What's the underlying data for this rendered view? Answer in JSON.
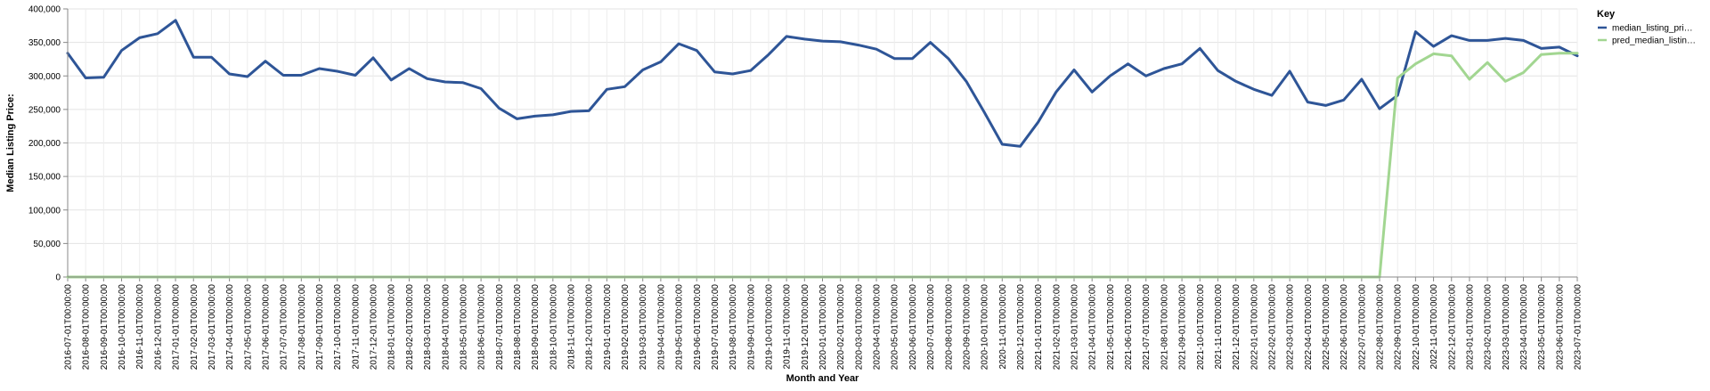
{
  "chart_data": {
    "type": "line",
    "xlabel": "Month and Year",
    "ylabel": "Median Listing Price:",
    "ylim": [
      0,
      400000
    ],
    "yticks": [
      "0",
      "50,000",
      "100,000",
      "150,000",
      "200,000",
      "250,000",
      "300,000",
      "350,000",
      "400,000"
    ],
    "ytick_values": [
      0,
      50000,
      100000,
      150000,
      200000,
      250000,
      300000,
      350000,
      400000
    ],
    "grid": true,
    "legend": {
      "title": "Key",
      "placement": "top-right",
      "entries": [
        "median_listing_pri…",
        "pred_median_listin…"
      ]
    },
    "x": [
      "2016-07-01T00:00:00",
      "2016-08-01T00:00:00",
      "2016-09-01T00:00:00",
      "2016-10-01T00:00:00",
      "2016-11-01T00:00:00",
      "2016-12-01T00:00:00",
      "2017-01-01T00:00:00",
      "2017-02-01T00:00:00",
      "2017-03-01T00:00:00",
      "2017-04-01T00:00:00",
      "2017-05-01T00:00:00",
      "2017-06-01T00:00:00",
      "2017-07-01T00:00:00",
      "2017-08-01T00:00:00",
      "2017-09-01T00:00:00",
      "2017-10-01T00:00:00",
      "2017-11-01T00:00:00",
      "2017-12-01T00:00:00",
      "2018-01-01T00:00:00",
      "2018-02-01T00:00:00",
      "2018-03-01T00:00:00",
      "2018-04-01T00:00:00",
      "2018-05-01T00:00:00",
      "2018-06-01T00:00:00",
      "2018-07-01T00:00:00",
      "2018-08-01T00:00:00",
      "2018-09-01T00:00:00",
      "2018-10-01T00:00:00",
      "2018-11-01T00:00:00",
      "2018-12-01T00:00:00",
      "2019-01-01T00:00:00",
      "2019-02-01T00:00:00",
      "2019-03-01T00:00:00",
      "2019-04-01T00:00:00",
      "2019-05-01T00:00:00",
      "2019-06-01T00:00:00",
      "2019-07-01T00:00:00",
      "2019-08-01T00:00:00",
      "2019-09-01T00:00:00",
      "2019-10-01T00:00:00",
      "2019-11-01T00:00:00",
      "2019-12-01T00:00:00",
      "2020-01-01T00:00:00",
      "2020-02-01T00:00:00",
      "2020-03-01T00:00:00",
      "2020-04-01T00:00:00",
      "2020-05-01T00:00:00",
      "2020-06-01T00:00:00",
      "2020-07-01T00:00:00",
      "2020-08-01T00:00:00",
      "2020-09-01T00:00:00",
      "2020-10-01T00:00:00",
      "2020-11-01T00:00:00",
      "2020-12-01T00:00:00",
      "2021-01-01T00:00:00",
      "2021-02-01T00:00:00",
      "2021-03-01T00:00:00",
      "2021-04-01T00:00:00",
      "2021-05-01T00:00:00",
      "2021-06-01T00:00:00",
      "2021-07-01T00:00:00",
      "2021-08-01T00:00:00",
      "2021-09-01T00:00:00",
      "2021-10-01T00:00:00",
      "2021-11-01T00:00:00",
      "2021-12-01T00:00:00",
      "2022-01-01T00:00:00",
      "2022-02-01T00:00:00",
      "2022-03-01T00:00:00",
      "2022-04-01T00:00:00",
      "2022-05-01T00:00:00",
      "2022-06-01T00:00:00",
      "2022-07-01T00:00:00",
      "2022-08-01T00:00:00",
      "2022-09-01T00:00:00",
      "2022-10-01T00:00:00",
      "2022-11-01T00:00:00",
      "2022-12-01T00:00:00",
      "2023-01-01T00:00:00",
      "2023-02-01T00:00:00",
      "2023-03-01T00:00:00",
      "2023-04-01T00:00:00",
      "2023-05-01T00:00:00",
      "2023-06-01T00:00:00",
      "2023-07-01T00:00:00"
    ],
    "series": [
      {
        "name": "median_listing_pri…",
        "color": "#2e5597",
        "values": [
          334000,
          297000,
          298000,
          338000,
          357000,
          363000,
          383000,
          328000,
          328000,
          303000,
          299000,
          322000,
          301000,
          301000,
          311000,
          307000,
          301000,
          327000,
          294000,
          311000,
          296000,
          291000,
          290000,
          281000,
          252000,
          236000,
          240000,
          242000,
          247000,
          248000,
          280000,
          284000,
          309000,
          321000,
          348000,
          338000,
          306000,
          303000,
          308000,
          332000,
          359000,
          355000,
          352000,
          351000,
          346000,
          340000,
          326000,
          326000,
          350000,
          326000,
          292000,
          246000,
          198000,
          195000,
          231000,
          276000,
          309000,
          276000,
          300000,
          318000,
          300000,
          311000,
          318000,
          341000,
          308000,
          292000,
          280000,
          271000,
          307000,
          261000,
          256000,
          264000,
          295000,
          251000,
          271000,
          366000,
          344000,
          360000,
          353000,
          353000,
          356000,
          353000,
          341000,
          343000,
          330000
        ]
      },
      {
        "name": "pred_median_listin…",
        "color": "#a2d691",
        "values": [
          0,
          0,
          0,
          0,
          0,
          0,
          0,
          0,
          0,
          0,
          0,
          0,
          0,
          0,
          0,
          0,
          0,
          0,
          0,
          0,
          0,
          0,
          0,
          0,
          0,
          0,
          0,
          0,
          0,
          0,
          0,
          0,
          0,
          0,
          0,
          0,
          0,
          0,
          0,
          0,
          0,
          0,
          0,
          0,
          0,
          0,
          0,
          0,
          0,
          0,
          0,
          0,
          0,
          0,
          0,
          0,
          0,
          0,
          0,
          0,
          0,
          0,
          0,
          0,
          0,
          0,
          0,
          0,
          0,
          0,
          0,
          0,
          0,
          0,
          297000,
          318000,
          333000,
          330000,
          295000,
          320000,
          292000,
          305000,
          332000,
          334000,
          334000
        ]
      }
    ]
  }
}
